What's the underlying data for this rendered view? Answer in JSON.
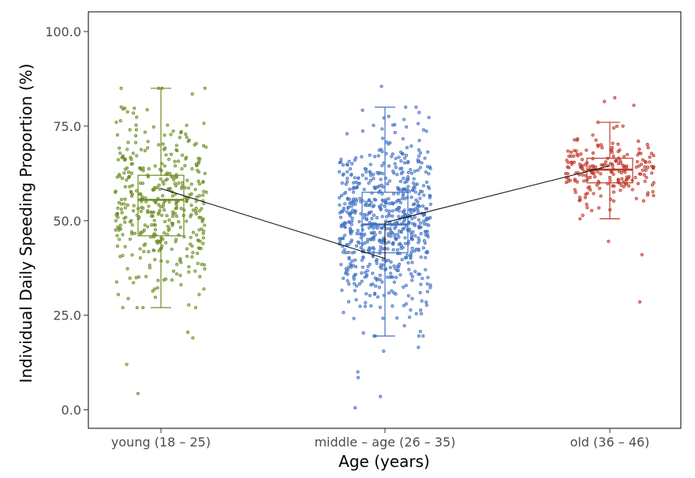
{
  "chart_data": {
    "type": "scatter",
    "subtype": "jittered points with box plots",
    "title": "",
    "xlabel": "Age (years)",
    "ylabel": "Individual Daily Speeding Proportion (%)",
    "ylim": [
      0,
      100
    ],
    "yticks": [
      0,
      25,
      50,
      75,
      100
    ],
    "ytick_labels": [
      "0.0",
      "25.0",
      "50.0",
      "75.0",
      "100.0"
    ],
    "grid": false,
    "categories": [
      "young (18 – 25)",
      "middle – age (26 – 35)",
      "old (36 – 46)"
    ],
    "series": [
      {
        "category": "young (18 – 25)",
        "color": "#6b8e23",
        "n_points": 420,
        "box": {
          "whisker_low": 27,
          "q1": 46,
          "median": 55.5,
          "q3": 62,
          "whisker_high": 85
        },
        "outliers": [
          4.3,
          12,
          19,
          20.5
        ]
      },
      {
        "category": "middle – age (26 – 35)",
        "color": "#4472c4",
        "n_points": 700,
        "box": {
          "whisker_low": 19.5,
          "q1": 41.5,
          "median": 49,
          "q3": 57.5,
          "whisker_high": 80
        },
        "outliers": [
          0.5,
          3.5,
          8.5,
          10,
          15.5,
          16.5,
          85.5
        ]
      },
      {
        "category": "old (36 – 46)",
        "color": "#c0392b",
        "n_points": 210,
        "box": {
          "whisker_low": 50.5,
          "q1": 60,
          "median": 63.5,
          "q3": 66.5,
          "whisker_high": 76
        },
        "outliers": [
          28.5,
          41,
          44.5,
          80.5,
          81.5,
          82.5
        ]
      }
    ],
    "trend_line": {
      "color": "#000000",
      "points": [
        {
          "category": "young (18 – 25)",
          "y": 58.5
        },
        {
          "category": "middle – age (26 – 35)",
          "y": 40
        },
        {
          "category": "middle – age (26 – 35)",
          "y": 49.5
        },
        {
          "category": "old (36 – 46)",
          "y": 64.5
        }
      ]
    }
  }
}
